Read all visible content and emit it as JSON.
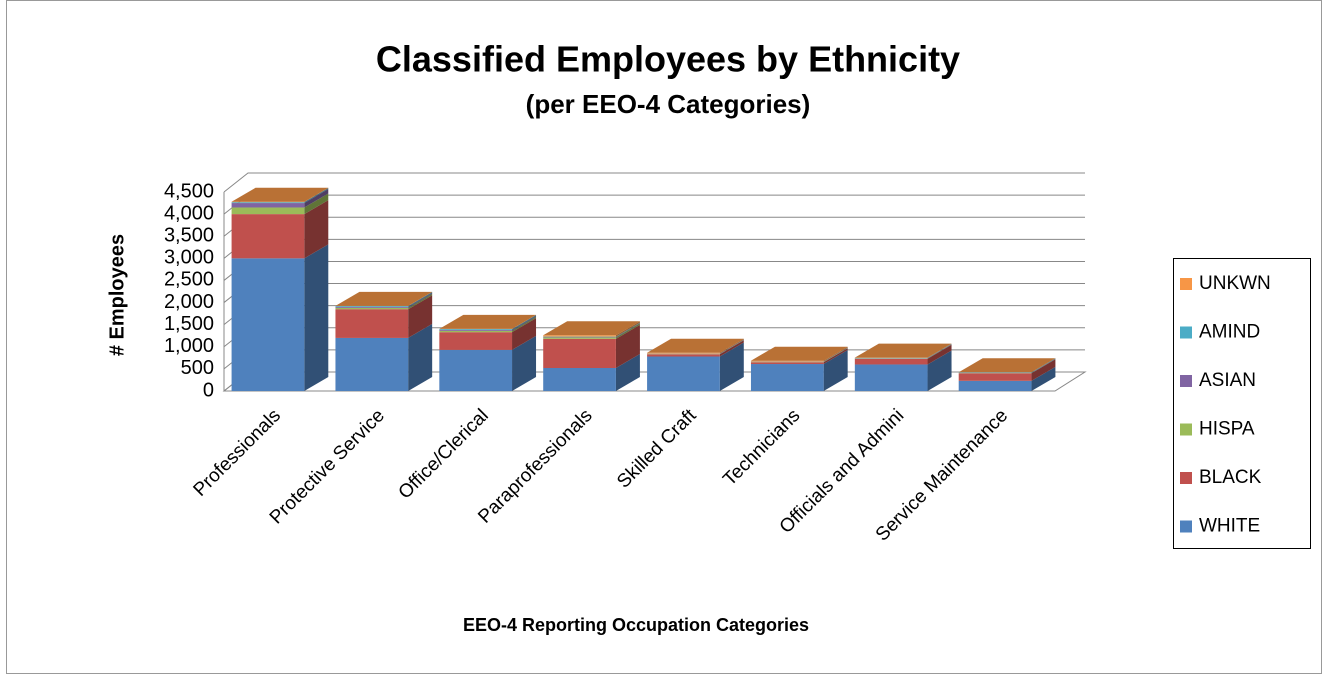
{
  "chart_data": {
    "type": "bar3d_stacked",
    "title": "Classified Employees by Ethnicity",
    "subtitle": "(per EEO-4 Categories)",
    "x_label": "EEO-4 Reporting Occupation Categories",
    "y_label": "# Employees",
    "categories": [
      "Professionals",
      "Protective Service",
      "Office/Clerical",
      "Paraprofessionals",
      "Skilled Craft",
      "Technicians",
      "Officials and Admini",
      "Service Maintenance"
    ],
    "series": [
      {
        "name": "WHITE",
        "color": "#4f81bd",
        "values": [
          3000,
          1200,
          930,
          520,
          780,
          610,
          600,
          230
        ]
      },
      {
        "name": "BLACK",
        "color": "#c0504d",
        "values": [
          1000,
          650,
          400,
          660,
          50,
          40,
          130,
          170
        ]
      },
      {
        "name": "HISPA",
        "color": "#9bbb59",
        "values": [
          150,
          30,
          30,
          30,
          5,
          5,
          5,
          5
        ]
      },
      {
        "name": "ASIAN",
        "color": "#8064a2",
        "values": [
          100,
          20,
          20,
          10,
          5,
          5,
          5,
          5
        ]
      },
      {
        "name": "AMIND",
        "color": "#4bacc6",
        "values": [
          20,
          20,
          20,
          10,
          5,
          5,
          10,
          10
        ]
      },
      {
        "name": "UNKWN",
        "color": "#f79646",
        "values": [
          10,
          5,
          5,
          30,
          20,
          20,
          5,
          5
        ]
      }
    ],
    "ylim": [
      0,
      4500
    ],
    "yticks": [
      0,
      {
        "value": 500,
        "label": "500"
      },
      {
        "value": 1000,
        "label": "1,000"
      },
      {
        "value": 1500,
        "label": "1,500"
      },
      {
        "value": 2000,
        "label": "2,000"
      },
      {
        "value": 2500,
        "label": "2,500"
      },
      {
        "value": 3000,
        "label": "3,000"
      },
      {
        "value": 3500,
        "label": "3,500"
      },
      {
        "value": 4000,
        "label": "4,000"
      },
      {
        "value": 4500,
        "label": "4,500"
      }
    ],
    "grid": true,
    "legend": "right"
  }
}
